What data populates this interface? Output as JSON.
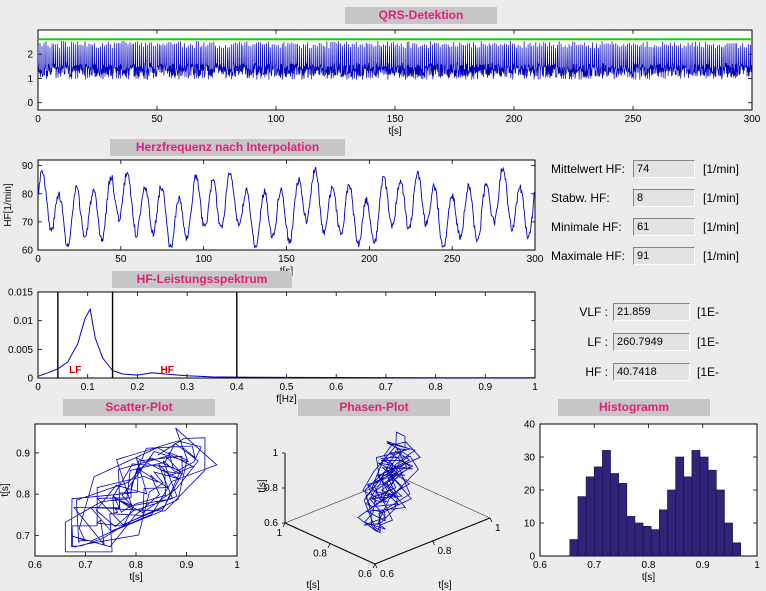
{
  "panels": {
    "qrs": {
      "title": "QRS-Detektion"
    },
    "hf": {
      "title": "Herzfrequenz nach Interpolation"
    },
    "spectrum": {
      "title": "HF-Leistungsspektrum"
    },
    "scatter": {
      "title": "Scatter-Plot"
    },
    "phase": {
      "title": "Phasen-Plot"
    },
    "histogram": {
      "title": "Histogramm"
    }
  },
  "stats": {
    "rows": [
      {
        "label": "Mittelwert HF:",
        "value": "74",
        "unit": "[1/min]"
      },
      {
        "label": "Stabw. HF:",
        "value": "8",
        "unit": "[1/min]"
      },
      {
        "label": "Minimale HF:",
        "value": "61",
        "unit": "[1/min]"
      },
      {
        "label": "Maximale HF:",
        "value": "91",
        "unit": "[1/min]"
      }
    ]
  },
  "spectral": {
    "rows": [
      {
        "label": "VLF :",
        "value": "21.859",
        "unit": "[1E-"
      },
      {
        "label": "LF :",
        "value": "260.7949",
        "unit": "[1E-"
      },
      {
        "label": "HF :",
        "value": "40.7418",
        "unit": "[1E-"
      }
    ]
  },
  "colors": {
    "title_text": "#dd2277",
    "title_bg": "#c6c6c6",
    "signal_blue": "#0000bb",
    "threshold_green": "#00dd00",
    "histogram_bar": "#2f2477",
    "band_label_red": "#cc0000"
  },
  "chart_data": [
    {
      "id": "qrs",
      "type": "line",
      "title": "QRS-Detektion",
      "xlabel": "t[s]",
      "xlim": [
        0,
        300
      ],
      "ylim": [
        -0.3,
        3.0
      ],
      "xticks": [
        0,
        50,
        100,
        150,
        200,
        250,
        300
      ],
      "yticks": [
        0,
        1,
        2
      ],
      "threshold_line": {
        "y": 2.62,
        "color": "#00dd00"
      },
      "signal": {
        "color": "#0000bb",
        "baseline": 1.35,
        "noise_halfband": 0.28,
        "spike_min": 2.25,
        "spike_max": 2.55,
        "dip": 0.95,
        "beat_interval_s": 0.82,
        "sample_step_s": 0.14,
        "seed": 7
      }
    },
    {
      "id": "hf",
      "type": "line",
      "title": "Herzfrequenz nach Interpolation",
      "xlabel": "t[s]",
      "ylabel": "HF[1/min]",
      "xlim": [
        0,
        300
      ],
      "ylim": [
        60,
        92
      ],
      "xticks": [
        0,
        50,
        100,
        150,
        200,
        250,
        300
      ],
      "yticks": [
        60,
        70,
        80,
        90
      ],
      "series": {
        "color": "#0000bb",
        "mean": 74.5,
        "components": [
          {
            "amp": 9,
            "period": 10.3,
            "phase": 0
          },
          {
            "amp": 3.5,
            "period": 57,
            "phase": 2.1
          },
          {
            "amp": 2.5,
            "period": 23,
            "phase": 0.7
          }
        ],
        "noise": 1.5,
        "clamp": [
          61,
          91
        ],
        "step_s": 0.4,
        "seed": 3
      }
    },
    {
      "id": "spectrum",
      "type": "line",
      "title": "HF-Leistungsspektrum",
      "xlabel": "f[Hz]",
      "xlim": [
        0,
        1
      ],
      "ylim": [
        0,
        0.015
      ],
      "xticks": [
        0,
        0.1,
        0.2,
        0.3,
        0.4,
        0.5,
        0.6,
        0.7,
        0.8,
        0.9,
        1
      ],
      "yticks": [
        0,
        0.005,
        0.01,
        0.015
      ],
      "line_color": "#0000bb",
      "points": [
        [
          0,
          0.0003
        ],
        [
          0.02,
          0.0009
        ],
        [
          0.04,
          0.0016
        ],
        [
          0.06,
          0.0028
        ],
        [
          0.08,
          0.006
        ],
        [
          0.095,
          0.0105
        ],
        [
          0.105,
          0.012
        ],
        [
          0.115,
          0.007
        ],
        [
          0.13,
          0.0035
        ],
        [
          0.15,
          0.0013
        ],
        [
          0.17,
          0.0007
        ],
        [
          0.2,
          0.0005
        ],
        [
          0.23,
          0.0009
        ],
        [
          0.27,
          0.0006
        ],
        [
          0.3,
          0.0004
        ],
        [
          0.35,
          0.0002
        ],
        [
          0.4,
          0.00015
        ],
        [
          0.5,
          0.0001
        ],
        [
          0.6,
          8e-05
        ],
        [
          0.8,
          6e-05
        ],
        [
          1,
          5e-05
        ]
      ],
      "band_lines": {
        "x": [
          0.04,
          0.15,
          0.4
        ],
        "color": "#000000"
      },
      "band_labels": [
        {
          "text": "LF",
          "x": 0.075,
          "color": "#cc0000"
        },
        {
          "text": "HF",
          "x": 0.26,
          "color": "#cc0000"
        }
      ]
    },
    {
      "id": "scatter",
      "type": "scatter",
      "title": "Scatter-Plot",
      "xlabel": "t[s]",
      "ylabel": "t[s]",
      "xlim": [
        0.6,
        1
      ],
      "ylim": [
        0.65,
        0.97
      ],
      "xticks": [
        0.6,
        0.7,
        0.8,
        0.9,
        1
      ],
      "yticks": [
        0.7,
        0.8,
        0.9
      ],
      "line_color": "#0000bb",
      "generator": {
        "n": 130,
        "base": 0.8,
        "a1": 0.085,
        "f1": 0.6,
        "a2": 0.045,
        "f2": 0.151,
        "jitter": 0.05,
        "clamp": [
          0.66,
          0.96
        ],
        "seed": 11
      }
    },
    {
      "id": "phase",
      "type": "line3d",
      "title": "Phasen-Plot",
      "axis_labels": {
        "x": "t[s]",
        "y": "t[s]",
        "z": "t[s]"
      },
      "ticks": [
        0.6,
        0.8,
        1
      ],
      "lim": [
        0.6,
        1
      ],
      "line_color": "#0000bb",
      "generator": {
        "n": 130,
        "base": 0.8,
        "a1": 0.085,
        "f1": 0.6,
        "a2": 0.045,
        "f2": 0.151,
        "jitter": 0.05,
        "clamp": [
          0.68,
          0.94
        ],
        "seed": 11
      }
    },
    {
      "id": "histogram",
      "type": "bar",
      "title": "Histogramm",
      "xlabel": "t[s]",
      "xlim": [
        0.6,
        1
      ],
      "ylim": [
        0,
        40
      ],
      "xticks": [
        0.6,
        0.7,
        0.8,
        0.9,
        1
      ],
      "yticks": [
        0,
        10,
        20,
        30,
        40
      ],
      "bar_color": "#2f2477",
      "bin_start": 0.655,
      "bin_width": 0.015,
      "counts": [
        5,
        18,
        24,
        27,
        32,
        25,
        22,
        12,
        10,
        9,
        8,
        14,
        20,
        30,
        24,
        32,
        30,
        26,
        20,
        10,
        4
      ]
    }
  ]
}
